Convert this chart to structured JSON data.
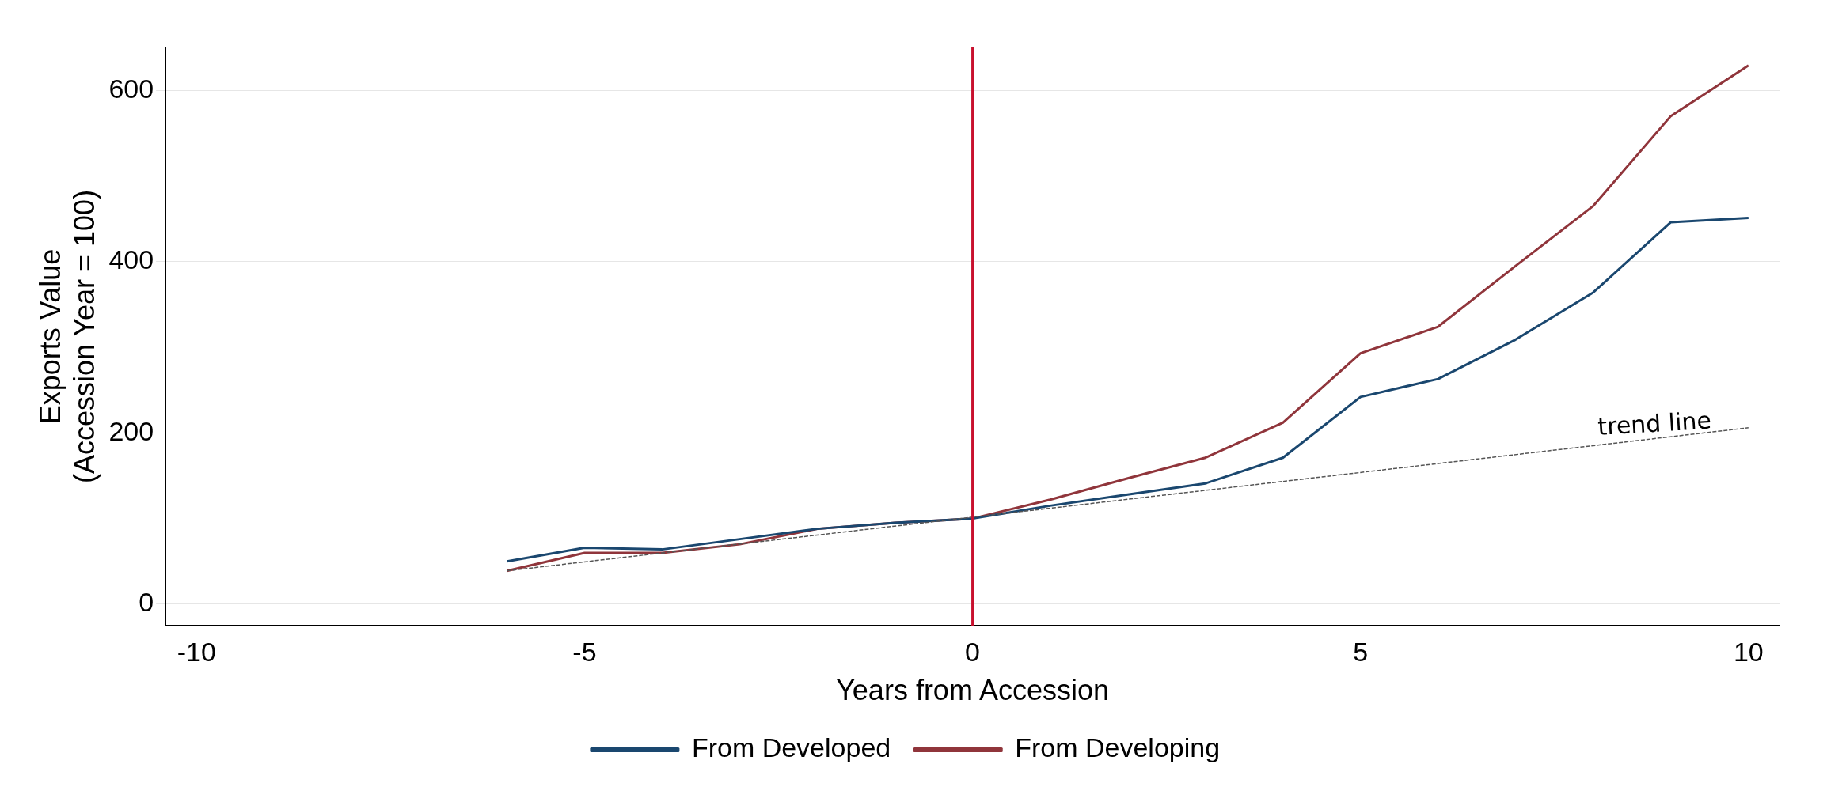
{
  "chart_data": {
    "type": "line",
    "xlabel": "Years from Accession",
    "ylabel": "Exports Value\n(Accession Year = 100)",
    "x": [
      -6,
      -5,
      -4,
      -3,
      -2,
      -1,
      0,
      1,
      2,
      3,
      4,
      5,
      6,
      7,
      8,
      9,
      10
    ],
    "series": [
      {
        "name": "From Developed",
        "color": "#1a476f",
        "values": [
          50,
          66,
          64,
          76,
          88,
          95,
          100,
          115,
          128,
          141,
          171,
          242,
          263,
          309,
          364,
          446,
          451
        ]
      },
      {
        "name": "From Developing",
        "color": "#90353b",
        "values": [
          39,
          60,
          60,
          70,
          88,
          95,
          100,
          122,
          147,
          171,
          212,
          293,
          324,
          395,
          465,
          570,
          629
        ]
      },
      {
        "type": "line",
        "color": "#555555",
        "line_style": "dashed",
        "x": [
          -6,
          10
        ],
        "values": [
          39,
          206
        ]
      }
    ],
    "xlim": [
      -10.4,
      10.4
    ],
    "xticks": [
      -10,
      -5,
      0,
      5,
      10
    ],
    "ylim": [
      -25,
      650
    ],
    "yticks": [
      0,
      200,
      400,
      600
    ],
    "ref_lines": [
      {
        "axis": "x",
        "value": 0,
        "color": "#c8102e"
      }
    ],
    "annotations": [
      {
        "text": "trend line",
        "x": 8.8,
        "y": 193
      }
    ],
    "grid": "y",
    "legend": "bottom",
    "marker": "none",
    "line_style": "solid"
  }
}
